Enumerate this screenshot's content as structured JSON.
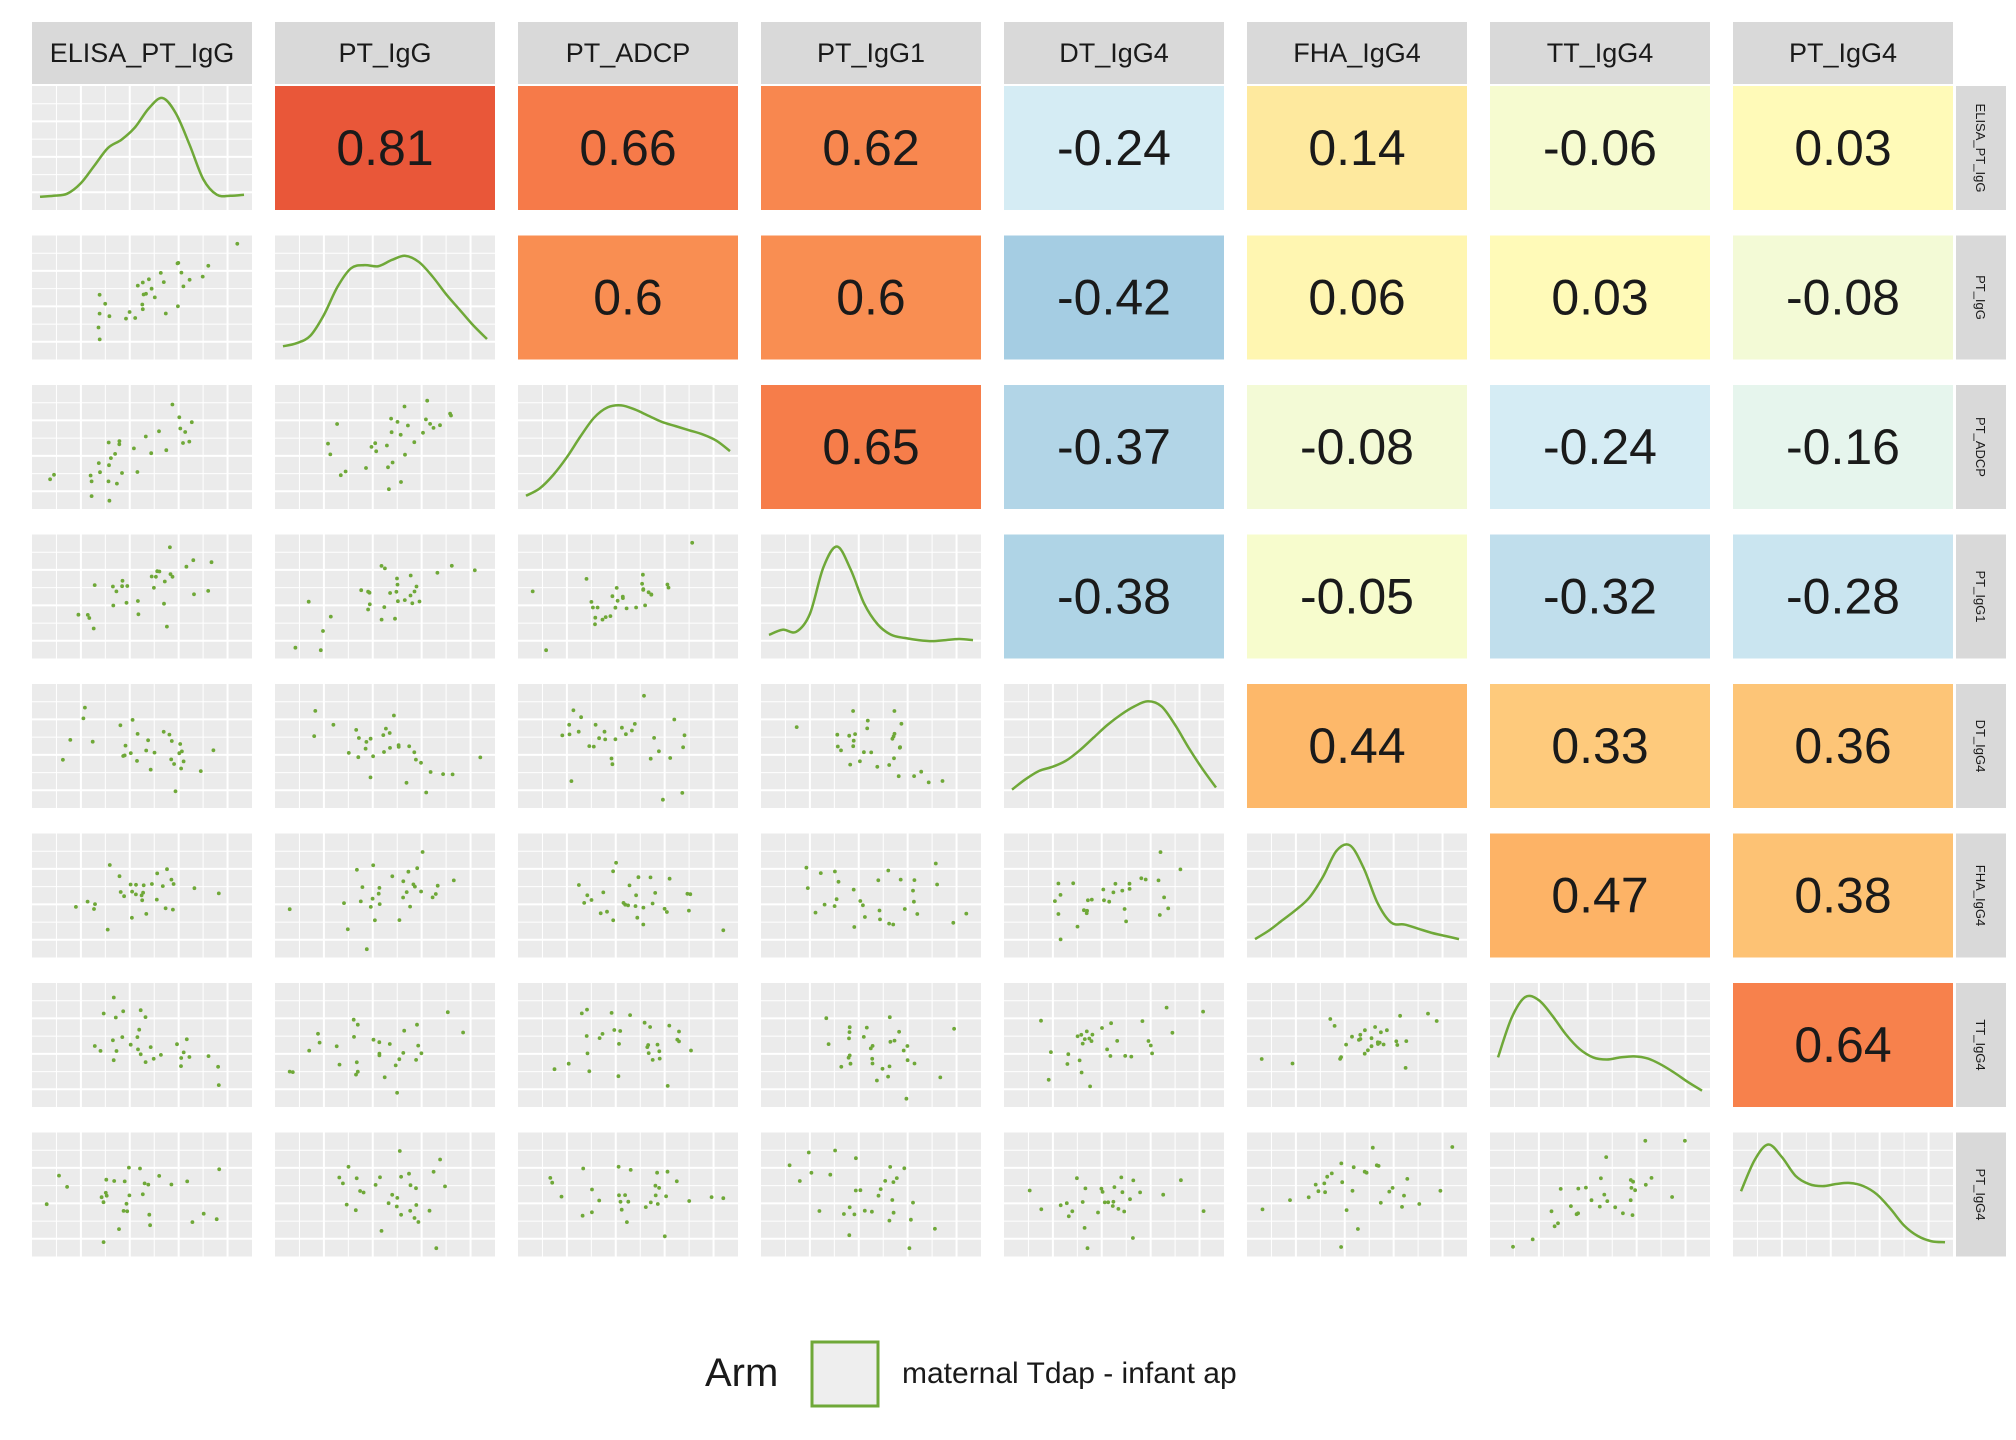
{
  "chart_data": {
    "type": "pairs",
    "variables": [
      "ELISA_PT_IgG",
      "PT_IgG",
      "PT_ADCP",
      "PT_IgG1",
      "DT_IgG4",
      "FHA_IgG4",
      "TT_IgG4",
      "PT_IgG4"
    ],
    "correlations": [
      [
        null,
        0.81,
        0.66,
        0.62,
        -0.24,
        0.14,
        -0.06,
        0.03
      ],
      [
        null,
        null,
        0.6,
        0.6,
        -0.42,
        0.06,
        0.03,
        -0.08
      ],
      [
        null,
        null,
        null,
        0.65,
        -0.37,
        -0.08,
        -0.24,
        -0.16
      ],
      [
        null,
        null,
        null,
        null,
        -0.38,
        -0.05,
        -0.32,
        -0.28
      ],
      [
        null,
        null,
        null,
        null,
        null,
        0.44,
        0.33,
        0.36
      ],
      [
        null,
        null,
        null,
        null,
        null,
        null,
        0.47,
        0.38
      ],
      [
        null,
        null,
        null,
        null,
        null,
        null,
        null,
        0.64
      ],
      [
        null,
        null,
        null,
        null,
        null,
        null,
        null,
        null
      ]
    ],
    "correlation_labels": [
      [
        null,
        "0.81",
        "0.66",
        "0.62",
        "-0.24",
        "0.14",
        "-0.06",
        "0.03"
      ],
      [
        null,
        null,
        "0.6",
        "0.6",
        "-0.42",
        "0.06",
        "0.03",
        "-0.08"
      ],
      [
        null,
        null,
        null,
        "0.65",
        "-0.37",
        "-0.08",
        "-0.24",
        "-0.16"
      ],
      [
        null,
        null,
        null,
        null,
        "-0.38",
        "-0.05",
        "-0.32",
        "-0.28"
      ],
      [
        null,
        null,
        null,
        null,
        null,
        "0.44",
        "0.33",
        "0.36"
      ],
      [
        null,
        null,
        null,
        null,
        null,
        null,
        "0.47",
        "0.38"
      ],
      [
        null,
        null,
        null,
        null,
        null,
        null,
        null,
        "0.64"
      ],
      [
        null,
        null,
        null,
        null,
        null,
        null,
        null,
        null
      ]
    ],
    "density": [
      [
        0.05,
        0.06,
        0.08,
        0.18,
        0.35,
        0.52,
        0.6,
        0.72,
        0.9,
        1.0,
        0.85,
        0.55,
        0.22,
        0.07,
        0.06,
        0.07
      ],
      [
        0.05,
        0.08,
        0.15,
        0.35,
        0.62,
        0.8,
        0.83,
        0.82,
        0.88,
        0.92,
        0.86,
        0.72,
        0.55,
        0.4,
        0.25,
        0.12
      ],
      [
        0.05,
        0.12,
        0.25,
        0.42,
        0.62,
        0.8,
        0.9,
        0.92,
        0.88,
        0.82,
        0.76,
        0.72,
        0.68,
        0.64,
        0.58,
        0.48
      ],
      [
        0.15,
        0.2,
        0.18,
        0.35,
        0.8,
        1.0,
        0.78,
        0.45,
        0.25,
        0.15,
        0.12,
        0.1,
        0.09,
        0.1,
        0.11,
        0.1
      ],
      [
        0.1,
        0.2,
        0.28,
        0.32,
        0.38,
        0.48,
        0.6,
        0.72,
        0.82,
        0.9,
        0.95,
        0.9,
        0.72,
        0.5,
        0.3,
        0.12
      ],
      [
        0.1,
        0.18,
        0.28,
        0.38,
        0.5,
        0.7,
        0.95,
        1.0,
        0.78,
        0.45,
        0.26,
        0.24,
        0.2,
        0.16,
        0.13,
        0.1
      ],
      [
        0.4,
        0.78,
        0.98,
        0.95,
        0.8,
        0.62,
        0.48,
        0.4,
        0.38,
        0.4,
        0.41,
        0.39,
        0.33,
        0.25,
        0.16,
        0.08
      ],
      [
        0.55,
        0.85,
        1.0,
        0.88,
        0.7,
        0.62,
        0.6,
        0.62,
        0.63,
        0.6,
        0.52,
        0.38,
        0.22,
        0.12,
        0.07,
        0.06
      ]
    ],
    "legend": {
      "title": "Arm",
      "label": "maternal Tdap - infant ap",
      "color": "#6fa838"
    },
    "colors": {
      "point": "#6fa838",
      "line": "#6fa838",
      "panel_bg": "#ebebeb",
      "grid": "#ffffff",
      "strip_bg": "#d9d9d9",
      "text": "#1a1a1a"
    }
  }
}
